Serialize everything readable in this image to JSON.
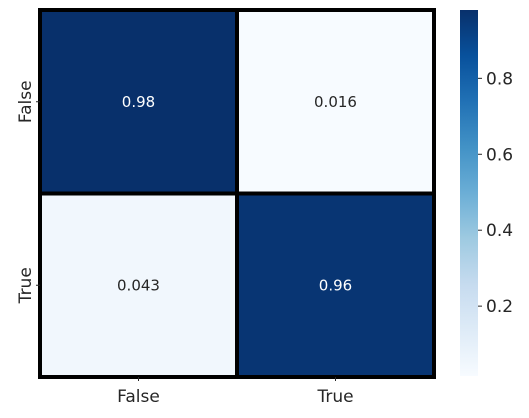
{
  "chart_data": {
    "type": "heatmap",
    "row_labels": [
      "False",
      "True"
    ],
    "col_labels": [
      "False",
      "True"
    ],
    "values": [
      [
        0.98,
        0.016
      ],
      [
        0.043,
        0.96
      ]
    ],
    "annotations": [
      [
        "0.98",
        "0.016"
      ],
      [
        "0.043",
        "0.96"
      ]
    ],
    "colormap": "Blues",
    "colorbar": {
      "range": [
        0.016,
        0.98
      ],
      "ticks": [
        0.2,
        0.4,
        0.6,
        0.8
      ],
      "tick_labels": [
        "0.2",
        "0.4",
        "0.6",
        "0.8"
      ]
    },
    "cell_border_color": "#000000",
    "dark_cell_color": "#08306b",
    "light_cell_color": "#f7fbff",
    "dark_text_color": "#ffffff",
    "light_text_color": "#262626"
  }
}
